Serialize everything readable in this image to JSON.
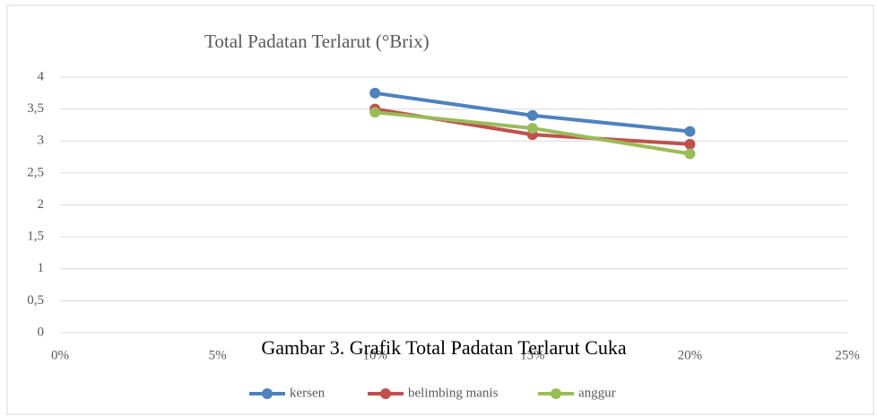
{
  "chart_data": {
    "type": "line",
    "title": "Total Padatan Terlarut (°Brix)",
    "caption": "Gambar 3. Grafik Total Padatan Terlarut Cuka",
    "x": [
      10,
      15,
      20
    ],
    "series": [
      {
        "name": "kersen",
        "color": "#4f81bd",
        "values": [
          3.75,
          3.4,
          3.15
        ]
      },
      {
        "name": "belimbing manis",
        "color": "#c0504d",
        "values": [
          3.5,
          3.1,
          2.95
        ]
      },
      {
        "name": "anggur",
        "color": "#9bbb59",
        "values": [
          3.45,
          3.2,
          2.8
        ]
      }
    ],
    "xlim": [
      0,
      25
    ],
    "xticks": [
      {
        "value": 0,
        "label": "0%"
      },
      {
        "value": 5,
        "label": "5%"
      },
      {
        "value": 10,
        "label": "10%"
      },
      {
        "value": 15,
        "label": "15%"
      },
      {
        "value": 20,
        "label": "20%"
      },
      {
        "value": 25,
        "label": "25%"
      }
    ],
    "ylim": [
      0,
      4
    ],
    "yticks": [
      0,
      {
        "value": 0.5,
        "label": "0,5"
      },
      1,
      {
        "value": 1.5,
        "label": "1,5"
      },
      2,
      {
        "value": 2.5,
        "label": "2,5"
      },
      3,
      {
        "value": 3.5,
        "label": "3,5"
      },
      4
    ],
    "grid": true,
    "legend": "bottom"
  }
}
